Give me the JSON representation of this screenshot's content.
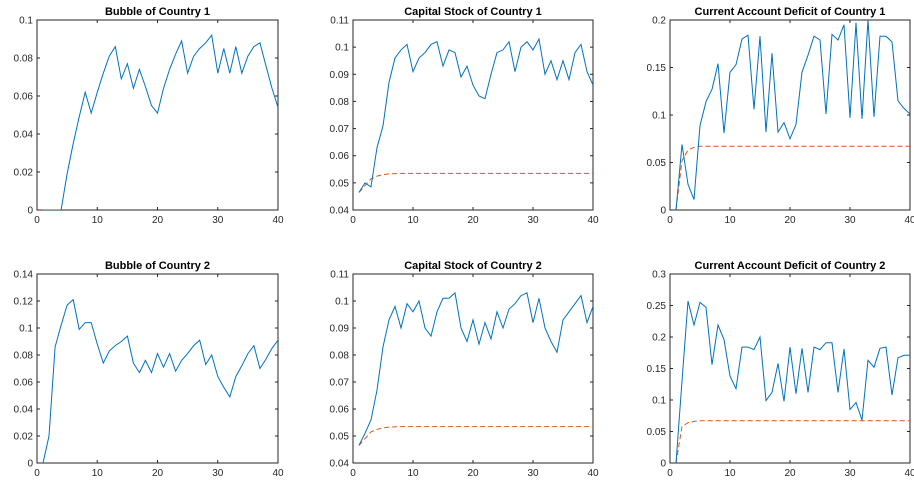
{
  "colors": {
    "series_solid": "#0072BD",
    "series_dashed": "#D95319",
    "axis": "#262626",
    "background": "#ffffff"
  },
  "chart_data": [
    {
      "type": "line",
      "title": "Bubble of Country 1",
      "xlim": [
        0,
        40
      ],
      "ylim": [
        0,
        0.1
      ],
      "xticks": [
        0,
        10,
        20,
        30,
        40
      ],
      "yticks": [
        0,
        0.02,
        0.04,
        0.06,
        0.08,
        0.1
      ],
      "xtick_labels": [
        "0",
        "10",
        "20",
        "30",
        "40"
      ],
      "ytick_labels": [
        "0",
        "0.02",
        "0.04",
        "0.06",
        "0.08",
        "0.1"
      ],
      "grid": false,
      "series": [
        {
          "style": "solid",
          "color": "#0072BD",
          "x": [
            1,
            2,
            3,
            4,
            5,
            6,
            7,
            8,
            9,
            10,
            11,
            12,
            13,
            14,
            15,
            16,
            17,
            18,
            19,
            20,
            21,
            22,
            23,
            24,
            25,
            26,
            27,
            28,
            29,
            30,
            31,
            32,
            33,
            34,
            35,
            36,
            37,
            38,
            39,
            40
          ],
          "y": [
            0,
            0,
            0,
            0,
            0.019,
            0.035,
            0.049,
            0.062,
            0.051,
            0.062,
            0.072,
            0.081,
            0.086,
            0.069,
            0.077,
            0.064,
            0.074,
            0.065,
            0.055,
            0.051,
            0.064,
            0.074,
            0.082,
            0.089,
            0.072,
            0.081,
            0.085,
            0.088,
            0.092,
            0.072,
            0.085,
            0.072,
            0.086,
            0.072,
            0.081,
            0.086,
            0.088,
            0.076,
            0.064,
            0.054
          ]
        }
      ]
    },
    {
      "type": "line",
      "title": "Capital Stock of Country 1",
      "xlim": [
        0,
        40
      ],
      "ylim": [
        0.04,
        0.11
      ],
      "xticks": [
        0,
        10,
        20,
        30,
        40
      ],
      "yticks": [
        0.04,
        0.05,
        0.06,
        0.07,
        0.08,
        0.09,
        0.1,
        0.11
      ],
      "xtick_labels": [
        "0",
        "10",
        "20",
        "30",
        "40"
      ],
      "ytick_labels": [
        "0.04",
        "0.05",
        "0.06",
        "0.07",
        "0.08",
        "0.09",
        "0.1",
        "0.11"
      ],
      "grid": false,
      "series": [
        {
          "style": "solid",
          "color": "#0072BD",
          "x": [
            1,
            2,
            3,
            4,
            5,
            6,
            7,
            8,
            9,
            10,
            11,
            12,
            13,
            14,
            15,
            16,
            17,
            18,
            19,
            20,
            21,
            22,
            23,
            24,
            25,
            26,
            27,
            28,
            29,
            30,
            31,
            32,
            33,
            34,
            35,
            36,
            37,
            38,
            39,
            40
          ],
          "y": [
            0.0465,
            0.05,
            0.0485,
            0.063,
            0.071,
            0.087,
            0.096,
            0.099,
            0.101,
            0.091,
            0.096,
            0.098,
            0.101,
            0.102,
            0.093,
            0.099,
            0.098,
            0.089,
            0.093,
            0.086,
            0.082,
            0.081,
            0.09,
            0.098,
            0.099,
            0.102,
            0.091,
            0.1,
            0.102,
            0.099,
            0.103,
            0.09,
            0.095,
            0.088,
            0.095,
            0.088,
            0.098,
            0.101,
            0.091,
            0.086
          ]
        },
        {
          "style": "dashed",
          "color": "#D95319",
          "x": [
            1,
            2,
            3,
            4,
            5,
            6,
            8,
            10,
            15,
            20,
            25,
            30,
            35,
            40
          ],
          "y": [
            0.0465,
            0.049,
            0.0515,
            0.0525,
            0.053,
            0.0533,
            0.0535,
            0.0535,
            0.0535,
            0.0535,
            0.0535,
            0.0535,
            0.0535,
            0.0535
          ]
        }
      ]
    },
    {
      "type": "line",
      "title": "Current Account Deficit of Country 1",
      "xlim": [
        0,
        40
      ],
      "ylim": [
        0,
        0.2
      ],
      "xticks": [
        0,
        10,
        20,
        30,
        40
      ],
      "yticks": [
        0,
        0.05,
        0.1,
        0.15,
        0.2
      ],
      "xtick_labels": [
        "0",
        "10",
        "20",
        "30",
        "40"
      ],
      "ytick_labels": [
        "0",
        "0.05",
        "0.1",
        "0.15",
        "0.2"
      ],
      "grid": false,
      "series": [
        {
          "style": "solid",
          "color": "#0072BD",
          "x": [
            1,
            2,
            3,
            4,
            5,
            6,
            7,
            8,
            9,
            10,
            11,
            12,
            13,
            14,
            15,
            16,
            17,
            18,
            19,
            20,
            21,
            22,
            23,
            24,
            25,
            26,
            27,
            28,
            29,
            30,
            31,
            32,
            33,
            34,
            35,
            36,
            37,
            38,
            39,
            40
          ],
          "y": [
            0,
            0.069,
            0.027,
            0.011,
            0.089,
            0.114,
            0.127,
            0.154,
            0.081,
            0.145,
            0.153,
            0.18,
            0.184,
            0.106,
            0.183,
            0.082,
            0.165,
            0.082,
            0.092,
            0.075,
            0.09,
            0.145,
            0.163,
            0.183,
            0.179,
            0.101,
            0.185,
            0.179,
            0.195,
            0.097,
            0.197,
            0.096,
            0.2,
            0.098,
            0.183,
            0.183,
            0.177,
            0.115,
            0.107,
            0.101
          ]
        },
        {
          "style": "dashed",
          "color": "#D95319",
          "x": [
            1,
            2,
            3,
            4,
            5,
            6,
            8,
            10,
            15,
            20,
            25,
            30,
            35,
            40
          ],
          "y": [
            0,
            0.052,
            0.063,
            0.066,
            0.067,
            0.067,
            0.067,
            0.067,
            0.067,
            0.067,
            0.067,
            0.067,
            0.067,
            0.067
          ]
        }
      ]
    },
    {
      "type": "line",
      "title": "Bubble of Country 2",
      "xlim": [
        0,
        40
      ],
      "ylim": [
        0,
        0.14
      ],
      "xticks": [
        0,
        10,
        20,
        30,
        40
      ],
      "yticks": [
        0,
        0.02,
        0.04,
        0.06,
        0.08,
        0.1,
        0.12,
        0.14
      ],
      "xtick_labels": [
        "0",
        "10",
        "20",
        "30",
        "40"
      ],
      "ytick_labels": [
        "0",
        "0.02",
        "0.04",
        "0.06",
        "0.08",
        "0.1",
        "0.12",
        "0.14"
      ],
      "grid": false,
      "series": [
        {
          "style": "solid",
          "color": "#0072BD",
          "x": [
            1,
            2,
            3,
            4,
            5,
            6,
            7,
            8,
            9,
            10,
            11,
            12,
            13,
            14,
            15,
            16,
            17,
            18,
            19,
            20,
            21,
            22,
            23,
            24,
            25,
            26,
            27,
            28,
            29,
            30,
            31,
            32,
            33,
            34,
            35,
            36,
            37,
            38,
            39,
            40
          ],
          "y": [
            0,
            0.02,
            0.086,
            0.102,
            0.117,
            0.121,
            0.099,
            0.104,
            0.104,
            0.088,
            0.074,
            0.083,
            0.087,
            0.09,
            0.094,
            0.074,
            0.067,
            0.076,
            0.067,
            0.081,
            0.071,
            0.081,
            0.068,
            0.076,
            0.081,
            0.087,
            0.091,
            0.073,
            0.08,
            0.064,
            0.056,
            0.049,
            0.064,
            0.072,
            0.081,
            0.087,
            0.07,
            0.077,
            0.085,
            0.091
          ]
        }
      ]
    },
    {
      "type": "line",
      "title": "Capital Stock of Country 2",
      "xlim": [
        0,
        40
      ],
      "ylim": [
        0.04,
        0.11
      ],
      "xticks": [
        0,
        10,
        20,
        30,
        40
      ],
      "yticks": [
        0.04,
        0.05,
        0.06,
        0.07,
        0.08,
        0.09,
        0.1,
        0.11
      ],
      "xtick_labels": [
        "0",
        "10",
        "20",
        "30",
        "40"
      ],
      "ytick_labels": [
        "0.04",
        "0.05",
        "0.06",
        "0.07",
        "0.08",
        "0.09",
        "0.1",
        "0.11"
      ],
      "grid": false,
      "series": [
        {
          "style": "solid",
          "color": "#0072BD",
          "x": [
            1,
            2,
            3,
            4,
            5,
            6,
            7,
            8,
            9,
            10,
            11,
            12,
            13,
            14,
            15,
            16,
            17,
            18,
            19,
            20,
            21,
            22,
            23,
            24,
            25,
            26,
            27,
            28,
            29,
            30,
            31,
            32,
            33,
            34,
            35,
            36,
            37,
            38,
            39,
            40
          ],
          "y": [
            0.0465,
            0.051,
            0.056,
            0.067,
            0.083,
            0.093,
            0.098,
            0.09,
            0.099,
            0.096,
            0.1,
            0.09,
            0.087,
            0.096,
            0.101,
            0.101,
            0.103,
            0.09,
            0.085,
            0.093,
            0.084,
            0.092,
            0.086,
            0.096,
            0.09,
            0.097,
            0.099,
            0.102,
            0.103,
            0.092,
            0.101,
            0.09,
            0.085,
            0.081,
            0.093,
            0.096,
            0.099,
            0.102,
            0.092,
            0.098
          ]
        },
        {
          "style": "dashed",
          "color": "#D95319",
          "x": [
            1,
            2,
            3,
            4,
            5,
            6,
            8,
            10,
            15,
            20,
            25,
            30,
            35,
            40
          ],
          "y": [
            0.0465,
            0.049,
            0.0515,
            0.0525,
            0.053,
            0.0533,
            0.0535,
            0.0535,
            0.0535,
            0.0535,
            0.0535,
            0.0535,
            0.0535,
            0.0535
          ]
        }
      ]
    },
    {
      "type": "line",
      "title": "Current Account Deficit of Country 2",
      "xlim": [
        0,
        40
      ],
      "ylim": [
        0,
        0.3
      ],
      "xticks": [
        0,
        10,
        20,
        30,
        40
      ],
      "yticks": [
        0,
        0.05,
        0.1,
        0.15,
        0.2,
        0.25,
        0.3
      ],
      "xtick_labels": [
        "0",
        "10",
        "20",
        "30",
        "40"
      ],
      "ytick_labels": [
        "0",
        "0.05",
        "0.1",
        "0.15",
        "0.2",
        "0.25",
        "0.3"
      ],
      "grid": false,
      "series": [
        {
          "style": "solid",
          "color": "#0072BD",
          "x": [
            1,
            2,
            3,
            4,
            5,
            6,
            7,
            8,
            9,
            10,
            11,
            12,
            13,
            14,
            15,
            16,
            17,
            18,
            19,
            20,
            21,
            22,
            23,
            24,
            25,
            26,
            27,
            28,
            29,
            30,
            31,
            32,
            33,
            34,
            35,
            36,
            37,
            38,
            39,
            40
          ],
          "y": [
            0,
            0.13,
            0.257,
            0.219,
            0.255,
            0.247,
            0.156,
            0.219,
            0.196,
            0.138,
            0.118,
            0.184,
            0.184,
            0.18,
            0.2,
            0.099,
            0.112,
            0.158,
            0.098,
            0.184,
            0.11,
            0.182,
            0.112,
            0.184,
            0.18,
            0.191,
            0.191,
            0.112,
            0.181,
            0.085,
            0.096,
            0.068,
            0.163,
            0.152,
            0.182,
            0.184,
            0.108,
            0.167,
            0.171,
            0.171
          ]
        },
        {
          "style": "dashed",
          "color": "#D95319",
          "x": [
            1,
            2,
            3,
            4,
            5,
            6,
            8,
            10,
            15,
            20,
            25,
            30,
            35,
            40
          ],
          "y": [
            0,
            0.058,
            0.064,
            0.066,
            0.067,
            0.067,
            0.067,
            0.067,
            0.067,
            0.067,
            0.067,
            0.067,
            0.067,
            0.067
          ]
        }
      ]
    }
  ]
}
